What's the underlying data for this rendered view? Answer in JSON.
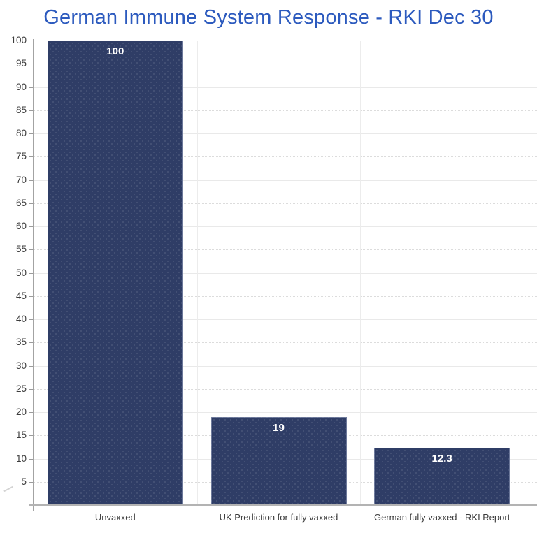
{
  "title": "German Immune System Response - RKI Dec 30",
  "colors": {
    "title": "#2c5abe",
    "bar": "#2f3d66",
    "bar_label": "#ffffff",
    "axis": "#a3a3a3",
    "grid_major": "#e9e9e9",
    "grid_minor": "#dcdcdc",
    "tick_label": "#3c3c3c",
    "background": "#ffffff"
  },
  "chart_data": {
    "type": "bar",
    "title": "German Immune System Response - RKI Dec 30",
    "categories": [
      "Unvaxxed",
      "UK Prediction for fully vaxxed",
      "German fully vaxxed - RKI Report"
    ],
    "values": [
      100,
      19,
      12.3
    ],
    "bar_labels": [
      "100",
      "19",
      "12.3"
    ],
    "series_name": "",
    "xlabel": "",
    "ylabel": "",
    "ylim": [
      0,
      100
    ],
    "ytick_step": 5,
    "yticks": [
      5,
      10,
      15,
      20,
      25,
      30,
      35,
      40,
      45,
      50,
      55,
      60,
      65,
      70,
      75,
      80,
      85,
      90,
      95,
      100
    ],
    "grid": true,
    "grid_style": "horizontal lines every 5 units, alternating solid (multiples of 10) and dotted (multiples of 5); vertical lines at category boundaries",
    "legend": false,
    "bar_color": "#2f3d66",
    "bar_texture": "subtle light dot pattern"
  }
}
